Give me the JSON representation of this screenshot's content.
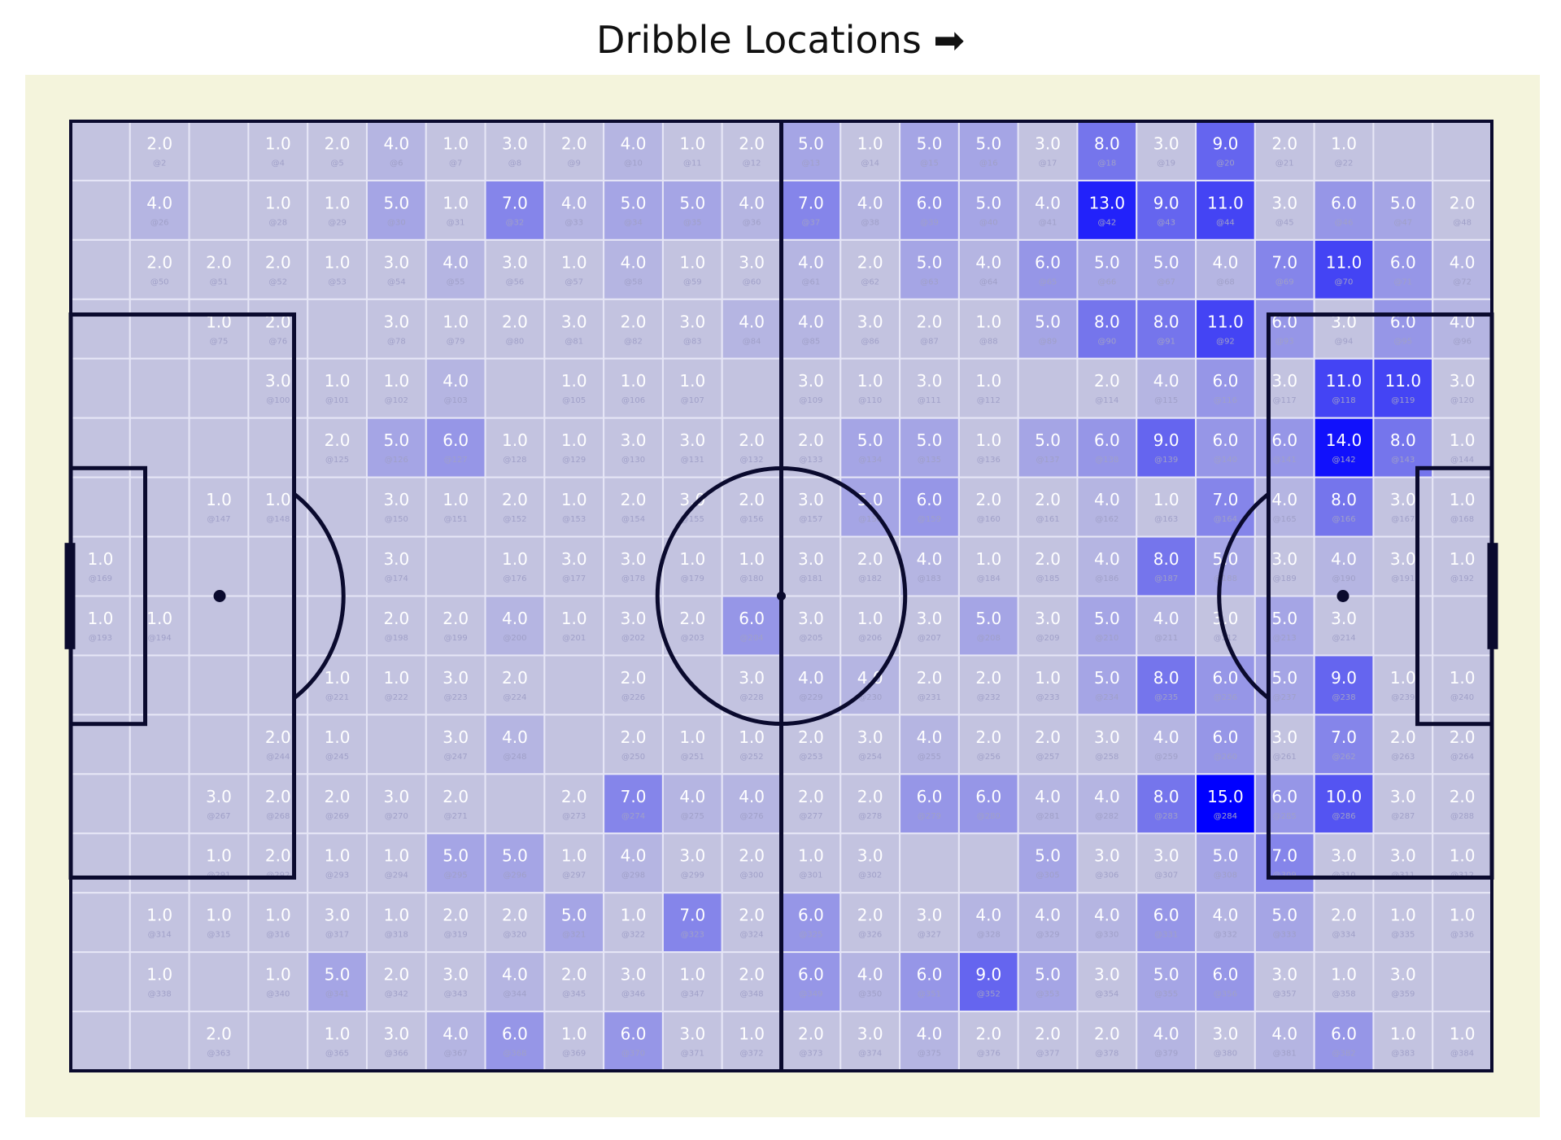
{
  "chart_data": {
    "type": "heatmap",
    "title": "Dribble Locations ➡",
    "grid_cols": 24,
    "grid_rows": 16,
    "colors": {
      "background": "#f4f4dc",
      "pitch_fill": "#c3c3e0",
      "high": "#0000ff",
      "lines": "#0a0a2e",
      "cell_border": "#e6e6f6",
      "label": "#ffffff",
      "index_label": "#a0a0c8"
    },
    "rows": [
      [
        null,
        2,
        null,
        1,
        2,
        4,
        1,
        3,
        2,
        4,
        1,
        2,
        5,
        1,
        5,
        5,
        3,
        8,
        3,
        9,
        2,
        1,
        null,
        null
      ],
      [
        null,
        4,
        null,
        1,
        1,
        5,
        1,
        7,
        4,
        5,
        5,
        4,
        7,
        4,
        6,
        5,
        4,
        13,
        9,
        11,
        3,
        6,
        5,
        2
      ],
      [
        null,
        2,
        2,
        2,
        1,
        3,
        4,
        3,
        1,
        4,
        1,
        3,
        4,
        2,
        5,
        4,
        6,
        5,
        5,
        4,
        7,
        11,
        6,
        4
      ],
      [
        null,
        null,
        1,
        2,
        null,
        3,
        1,
        2,
        3,
        2,
        3,
        4,
        4,
        3,
        2,
        1,
        5,
        8,
        8,
        11,
        6,
        3,
        6,
        4
      ],
      [
        null,
        null,
        null,
        3,
        1,
        1,
        4,
        null,
        1,
        1,
        1,
        null,
        3,
        1,
        3,
        1,
        null,
        2,
        4,
        6,
        3,
        11,
        11,
        3
      ],
      [
        null,
        null,
        null,
        null,
        2,
        5,
        6,
        1,
        1,
        3,
        3,
        2,
        2,
        5,
        5,
        1,
        5,
        6,
        9,
        6,
        6,
        14,
        8,
        1
      ],
      [
        null,
        null,
        1,
        1,
        null,
        3,
        1,
        2,
        1,
        2,
        3,
        2,
        3,
        5,
        6,
        2,
        2,
        4,
        1,
        7,
        4,
        8,
        3,
        1
      ],
      [
        1,
        null,
        null,
        null,
        null,
        3,
        null,
        1,
        3,
        3,
        1,
        1,
        3,
        2,
        4,
        1,
        2,
        4,
        8,
        5,
        3,
        4,
        3,
        1
      ],
      [
        1,
        1,
        null,
        null,
        null,
        2,
        2,
        4,
        1,
        3,
        2,
        6,
        3,
        1,
        3,
        5,
        3,
        5,
        4,
        3,
        5,
        3,
        null,
        null
      ],
      [
        null,
        null,
        null,
        null,
        1,
        1,
        3,
        2,
        null,
        2,
        null,
        3,
        4,
        4,
        2,
        2,
        1,
        5,
        8,
        6,
        5,
        9,
        1,
        1
      ],
      [
        null,
        null,
        null,
        2,
        1,
        null,
        3,
        4,
        null,
        2,
        1,
        1,
        2,
        3,
        4,
        2,
        2,
        3,
        4,
        6,
        3,
        7,
        2,
        2
      ],
      [
        null,
        null,
        3,
        2,
        2,
        3,
        2,
        null,
        2,
        7,
        4,
        4,
        2,
        2,
        6,
        6,
        4,
        4,
        8,
        15,
        6,
        10,
        3,
        2
      ],
      [
        null,
        null,
        1,
        2,
        1,
        1,
        5,
        5,
        1,
        4,
        3,
        2,
        1,
        3,
        null,
        null,
        5,
        3,
        3,
        5,
        7,
        3,
        3,
        1
      ],
      [
        null,
        1,
        1,
        1,
        3,
        1,
        2,
        2,
        5,
        1,
        7,
        2,
        6,
        2,
        3,
        4,
        4,
        4,
        6,
        4,
        5,
        2,
        1,
        1
      ],
      [
        null,
        1,
        null,
        1,
        5,
        2,
        3,
        4,
        2,
        3,
        1,
        2,
        6,
        4,
        6,
        9,
        5,
        3,
        5,
        6,
        3,
        1,
        3,
        null
      ],
      [
        null,
        null,
        2,
        null,
        1,
        3,
        4,
        6,
        1,
        6,
        3,
        1,
        2,
        3,
        4,
        2,
        2,
        2,
        4,
        3,
        4,
        6,
        1,
        1
      ]
    ]
  }
}
